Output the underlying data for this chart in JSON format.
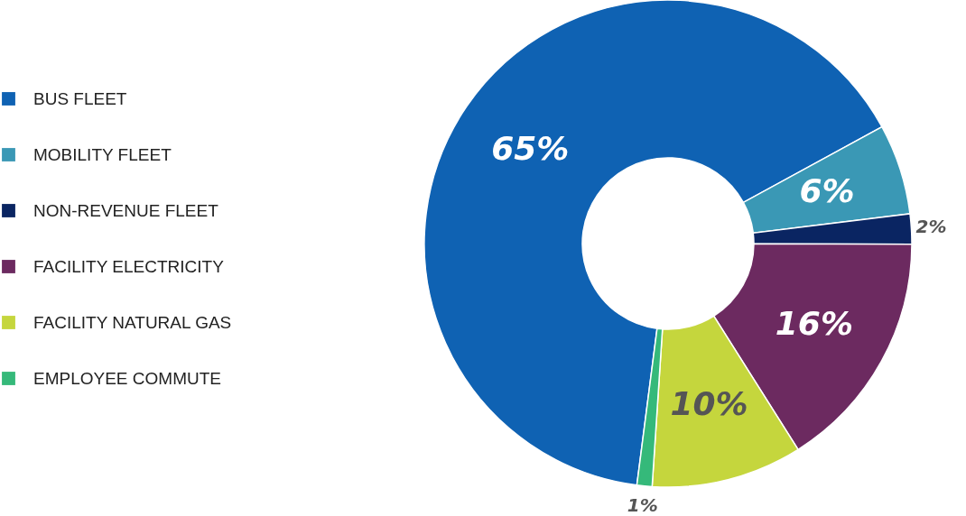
{
  "chart_data": {
    "type": "donut",
    "categories": [
      "BUS FLEET",
      "MOBILITY FLEET",
      "NON-REVENUE FLEET",
      "FACILITY ELECTRICITY",
      "FACILITY NATURAL GAS",
      "EMPLOYEE COMMUTE"
    ],
    "values": [
      65,
      6,
      2,
      16,
      10,
      1
    ],
    "colors": [
      "#0f62b3",
      "#3a98b5",
      "#0a2562",
      "#6c2a60",
      "#c5d63d",
      "#35b97a"
    ],
    "value_labels": [
      "65%",
      "6%",
      "2%",
      "16%",
      "10%",
      "1%"
    ],
    "legend": "left"
  }
}
